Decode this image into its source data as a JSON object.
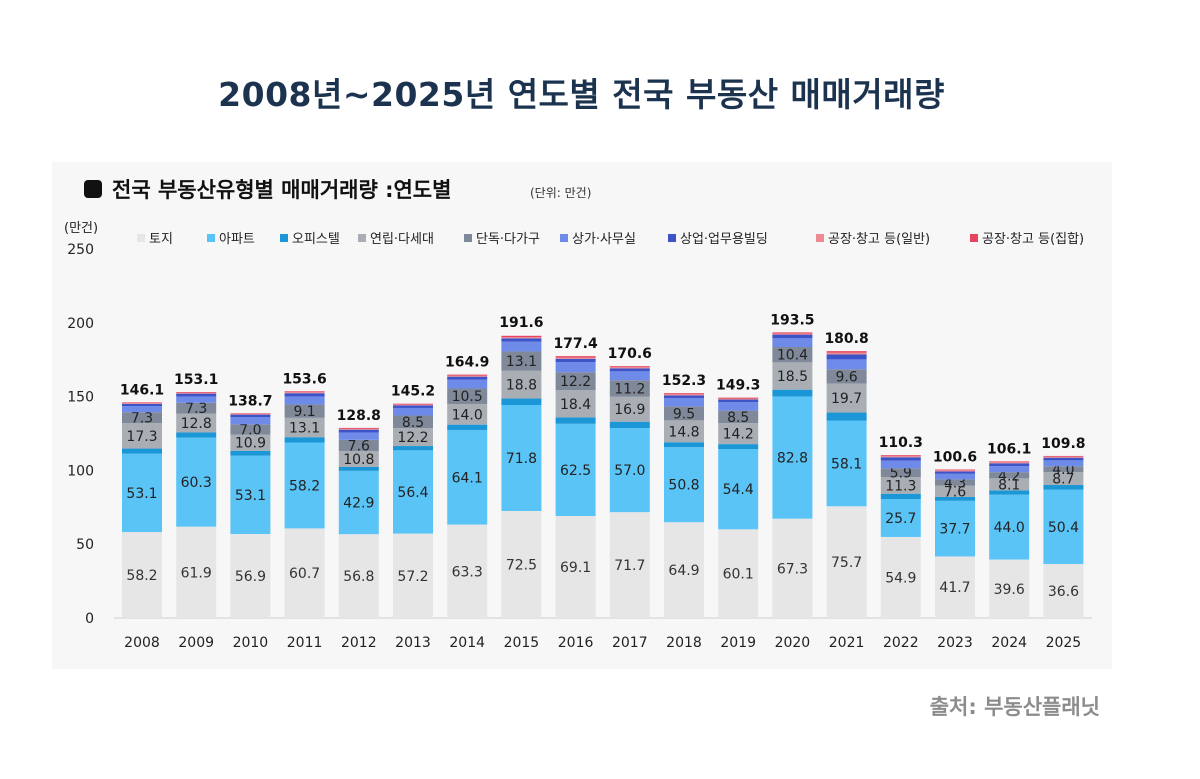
{
  "page_title": "2008년~2025년 연도별 전국 부동산 매매거래량",
  "source": "출처: 부동산플래닛",
  "chart_data": {
    "type": "bar",
    "stacked": true,
    "title": "전국 부동산유형별 매매거래량 :연도별",
    "subtitle": "(단위: 만건)",
    "ylabel": "(만건)",
    "ylim": [
      0,
      250
    ],
    "yticks": [
      0,
      50,
      100,
      150,
      200,
      250
    ],
    "legend_position": "top",
    "categories": [
      "2008",
      "2009",
      "2010",
      "2011",
      "2012",
      "2013",
      "2014",
      "2015",
      "2016",
      "2017",
      "2018",
      "2019",
      "2020",
      "2021",
      "2022",
      "2023",
      "2024",
      "2025"
    ],
    "totals": [
      146.1,
      153.1,
      138.7,
      153.6,
      128.8,
      145.2,
      164.9,
      191.6,
      177.4,
      170.6,
      152.3,
      149.3,
      193.5,
      180.8,
      110.3,
      100.6,
      106.1,
      109.8
    ],
    "series": [
      {
        "name": "토지",
        "color": "#e6e6e6",
        "label_color": "#333333",
        "values": [
          58.2,
          61.9,
          56.9,
          60.7,
          56.8,
          57.2,
          63.3,
          72.5,
          69.1,
          71.7,
          64.9,
          60.1,
          67.3,
          75.7,
          54.9,
          41.7,
          39.6,
          36.6
        ],
        "labels": true
      },
      {
        "name": "아파트",
        "color": "#5bc4f7",
        "label_color": "#222222",
        "values": [
          53.1,
          60.3,
          53.1,
          58.2,
          42.9,
          56.4,
          64.1,
          71.8,
          62.5,
          57.0,
          50.8,
          54.4,
          82.8,
          58.1,
          25.7,
          37.7,
          44.0,
          50.4
        ],
        "labels": true
      },
      {
        "name": "오피스텔",
        "color": "#1b96d6",
        "label_color": "#ffffff",
        "values": [
          3.5,
          3.5,
          3.3,
          3.6,
          2.6,
          2.9,
          3.6,
          4.4,
          4.3,
          4.3,
          3.4,
          3.3,
          4.6,
          5.4,
          3.6,
          2.6,
          2.9,
          3.1
        ],
        "labels": false
      },
      {
        "name": "연립·다세대",
        "color": "#a9aeb5",
        "label_color": "#222222",
        "values": [
          17.3,
          12.8,
          10.9,
          13.1,
          10.8,
          12.2,
          14.0,
          18.8,
          18.4,
          16.9,
          14.8,
          14.2,
          18.5,
          19.7,
          11.3,
          7.6,
          8.1,
          8.7
        ],
        "labels": true
      },
      {
        "name": "단독·다가구",
        "color": "#7f8999",
        "label_color": "#222222",
        "values": [
          7.3,
          7.3,
          7.0,
          9.1,
          7.6,
          8.5,
          10.5,
          13.1,
          12.2,
          11.2,
          9.5,
          8.5,
          10.4,
          9.6,
          5.9,
          4.3,
          4.2,
          4.0
        ],
        "labels": true
      },
      {
        "name": "상가·사무실",
        "color": "#6f8bea",
        "label_color": "#ffffff",
        "values": [
          4.2,
          4.3,
          4.8,
          5.4,
          5.0,
          5.1,
          6.0,
          6.6,
          6.9,
          6.0,
          5.6,
          5.7,
          5.9,
          6.7,
          5.2,
          3.8,
          4.1,
          4.0
        ],
        "labels": false
      },
      {
        "name": "상업·업무용빌딩",
        "color": "#3d54c9",
        "label_color": "#ffffff",
        "values": [
          1.5,
          1.9,
          1.8,
          2.2,
          1.9,
          1.8,
          2.0,
          2.3,
          2.2,
          2.0,
          1.8,
          1.8,
          2.5,
          3.4,
          2.3,
          1.6,
          1.9,
          1.8
        ],
        "labels": false
      },
      {
        "name": "공장·창고 등(일반)",
        "color": "#ee8a94",
        "label_color": "#ffffff",
        "values": [
          0.6,
          0.6,
          0.5,
          0.7,
          0.6,
          0.6,
          0.7,
          0.8,
          0.9,
          0.8,
          0.8,
          0.7,
          0.8,
          1.2,
          0.8,
          0.8,
          0.8,
          0.7
        ],
        "labels": false
      },
      {
        "name": "공장·창고 등(집합)",
        "color": "#e5455d",
        "label_color": "#ffffff",
        "values": [
          0.4,
          0.5,
          0.4,
          0.6,
          0.6,
          0.5,
          0.7,
          0.9,
          0.9,
          0.7,
          0.7,
          0.6,
          0.7,
          1.0,
          0.6,
          0.5,
          0.5,
          0.5
        ],
        "labels": false
      }
    ]
  }
}
